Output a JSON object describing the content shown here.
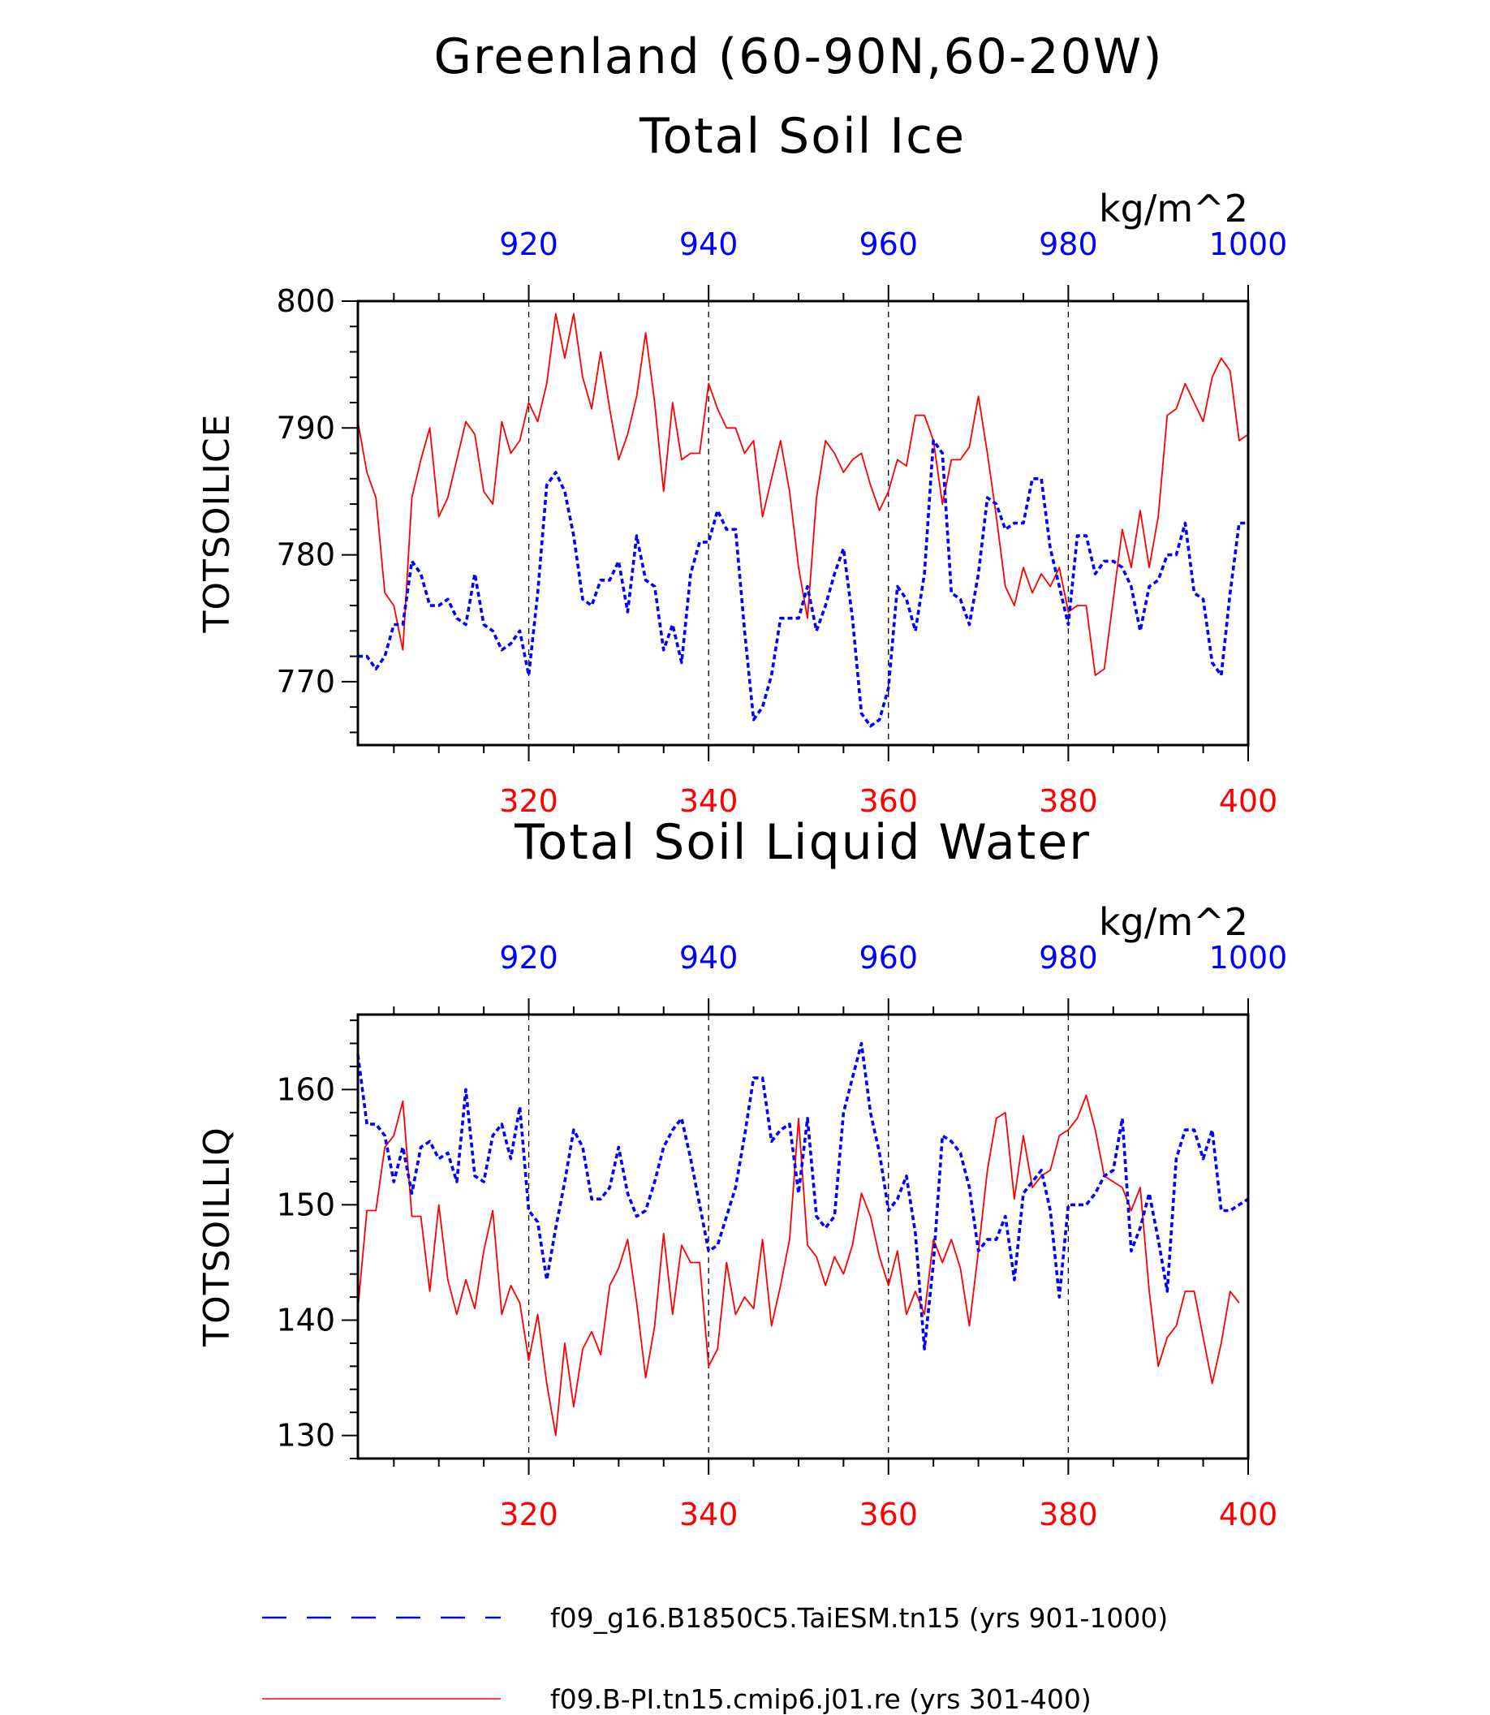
{
  "title": "Greenland (60-90N,60-20W)",
  "legend": [
    {
      "name": "f09_g16.B1850C5.TaiESM.tn15 (yrs 901-1000)",
      "color": "#0000ff",
      "style": "dashed"
    },
    {
      "name": "f09.B-PI.tn15.cmip6.j01.re (yrs 301-400)",
      "color": "#ff0000",
      "style": "solid"
    }
  ],
  "colors": {
    "red": "#ff0000",
    "blue": "#0000ff",
    "axis": "#000000"
  },
  "chart_data": [
    {
      "type": "line",
      "title": "Total Soil Ice",
      "ylabel": "TOTSOILICE",
      "units": "kg/m^2",
      "ylim": [
        765,
        800
      ],
      "yticks": [
        770,
        780,
        790,
        800
      ],
      "x_bottom": {
        "range": [
          301,
          400
        ],
        "ticks": [
          320,
          340,
          360,
          380,
          400
        ],
        "color": "#ff0000"
      },
      "x_top": {
        "range": [
          901,
          1000
        ],
        "ticks": [
          920,
          940,
          960,
          980,
          1000
        ],
        "color": "#0000ff"
      },
      "grid": "dashed vertical lines at major x ticks",
      "series": [
        {
          "color": "#ff0000",
          "style": "solid",
          "axis": "bottom",
          "values": [
            790.5,
            786.5,
            784.5,
            777,
            776,
            772.5,
            784.5,
            787.5,
            790,
            783,
            784.5,
            787.5,
            790.5,
            789.5,
            785,
            784,
            790.5,
            788,
            789,
            792,
            790.5,
            793.5,
            799,
            795.5,
            799,
            794,
            791.5,
            796,
            791.5,
            787.5,
            789.5,
            792.5,
            797.5,
            792,
            785,
            792,
            787.5,
            788,
            788,
            793.5,
            791.5,
            790,
            790,
            788,
            789,
            783,
            786,
            789,
            785,
            779,
            775,
            784.5,
            789,
            788,
            786.5,
            787.5,
            788,
            785.5,
            783.5,
            785,
            787.5,
            787,
            791,
            791,
            789,
            784,
            787.5,
            787.5,
            788.5,
            792.5,
            788,
            783,
            777.5,
            776,
            779,
            777,
            778.5,
            777.5,
            779,
            775.5,
            776,
            776,
            770.5,
            771,
            776.5,
            782,
            779,
            783.5,
            779,
            783,
            791,
            791.5,
            793.5,
            792,
            790.5,
            794,
            795.5,
            794.5,
            789,
            789.5
          ]
        },
        {
          "color": "#0000ff",
          "style": "dashed",
          "axis": "top",
          "values": [
            772,
            772,
            771,
            772,
            774.5,
            774.5,
            779.5,
            778.5,
            776,
            776,
            776.5,
            775,
            774.5,
            778.5,
            774.5,
            774,
            772.5,
            773,
            774,
            770.5,
            777,
            785.5,
            786.5,
            785,
            781.5,
            776.5,
            776,
            778,
            778,
            779.5,
            775.5,
            781.5,
            778,
            777.5,
            772.5,
            774.5,
            771.5,
            778.5,
            781,
            781,
            783.5,
            782,
            782,
            774,
            767,
            768,
            770.5,
            775,
            775,
            775,
            777.5,
            774,
            776,
            778.5,
            780.5,
            775,
            767.5,
            766.5,
            767,
            769.5,
            777.5,
            776.5,
            774,
            778.5,
            789,
            788,
            777,
            776.5,
            774.5,
            778.5,
            784.5,
            784,
            782,
            782.5,
            782.5,
            786,
            786,
            780.5,
            777.5,
            774.5,
            781.5,
            781.5,
            778.5,
            779.5,
            779.5,
            779,
            777.5,
            774,
            777.5,
            778,
            780,
            780,
            782.5,
            777,
            776.5,
            771.5,
            770.5,
            777,
            782.5,
            782.5
          ]
        }
      ]
    },
    {
      "type": "line",
      "title": "Total Soil Liquid Water",
      "ylabel": "TOTSOILLIQ",
      "units": "kg/m^2",
      "ylim": [
        128,
        166.5
      ],
      "yticks": [
        130,
        140,
        150,
        160
      ],
      "x_bottom": {
        "range": [
          301,
          400
        ],
        "ticks": [
          320,
          340,
          360,
          380,
          400
        ],
        "color": "#ff0000"
      },
      "x_top": {
        "range": [
          901,
          1000
        ],
        "ticks": [
          920,
          940,
          960,
          980,
          1000
        ],
        "color": "#0000ff"
      },
      "grid": "dashed vertical lines at major x ticks",
      "series": [
        {
          "color": "#ff0000",
          "style": "solid",
          "axis": "bottom",
          "values": [
            141,
            149.5,
            149.5,
            155,
            156,
            159,
            149,
            149,
            142.5,
            150,
            143.5,
            140.5,
            143.5,
            141,
            146,
            149.5,
            140.5,
            143,
            141.5,
            136.5,
            140.5,
            134.5,
            130,
            138,
            132.5,
            137.5,
            139,
            137,
            143,
            144.5,
            147,
            141.5,
            135,
            139.5,
            147.5,
            140.5,
            146.5,
            145,
            145,
            136,
            137.5,
            145,
            140.5,
            142,
            141,
            147,
            139.5,
            143,
            147,
            157.5,
            146.5,
            145.5,
            143,
            145.5,
            144,
            146.5,
            151,
            149,
            145.5,
            143,
            146,
            140.5,
            142.5,
            140.5,
            147,
            145,
            147,
            144.5,
            139.5,
            146,
            153,
            157.5,
            158,
            150.5,
            156,
            151.5,
            152.5,
            153,
            156,
            156.5,
            157.5,
            159.5,
            156.5,
            152.5,
            152,
            151.5,
            149.5,
            151.5,
            142.5,
            136,
            138.5,
            139.5,
            142.5,
            142.5,
            138.5,
            134.5,
            138,
            142.5,
            141.5
          ]
        },
        {
          "color": "#0000ff",
          "style": "dashed",
          "axis": "top",
          "values": [
            163,
            157,
            157,
            156,
            152,
            155,
            151,
            155,
            155.5,
            154,
            154.5,
            152,
            160,
            152.5,
            152,
            156,
            157,
            154,
            158.5,
            149.5,
            148.5,
            143.5,
            148,
            152,
            156.5,
            155,
            150.5,
            150.5,
            151.5,
            155,
            151,
            149,
            149.5,
            152,
            155,
            156.5,
            157.5,
            154,
            150,
            146,
            146.5,
            149,
            151.5,
            156,
            161,
            161,
            155.5,
            156.5,
            157,
            151,
            157.5,
            149,
            148,
            149,
            158,
            161,
            164,
            158,
            154.5,
            149.5,
            150.5,
            152.5,
            147.5,
            137.5,
            145,
            156,
            155.5,
            154.5,
            151.5,
            146,
            147,
            147,
            149,
            143.5,
            151,
            152,
            153,
            149.5,
            142,
            150,
            150,
            150,
            151,
            152.5,
            153,
            157.5,
            146,
            148,
            151,
            147,
            142.5,
            154,
            156.5,
            156.5,
            154,
            156.5,
            149.5,
            149.5,
            150,
            150.5
          ]
        }
      ]
    }
  ]
}
